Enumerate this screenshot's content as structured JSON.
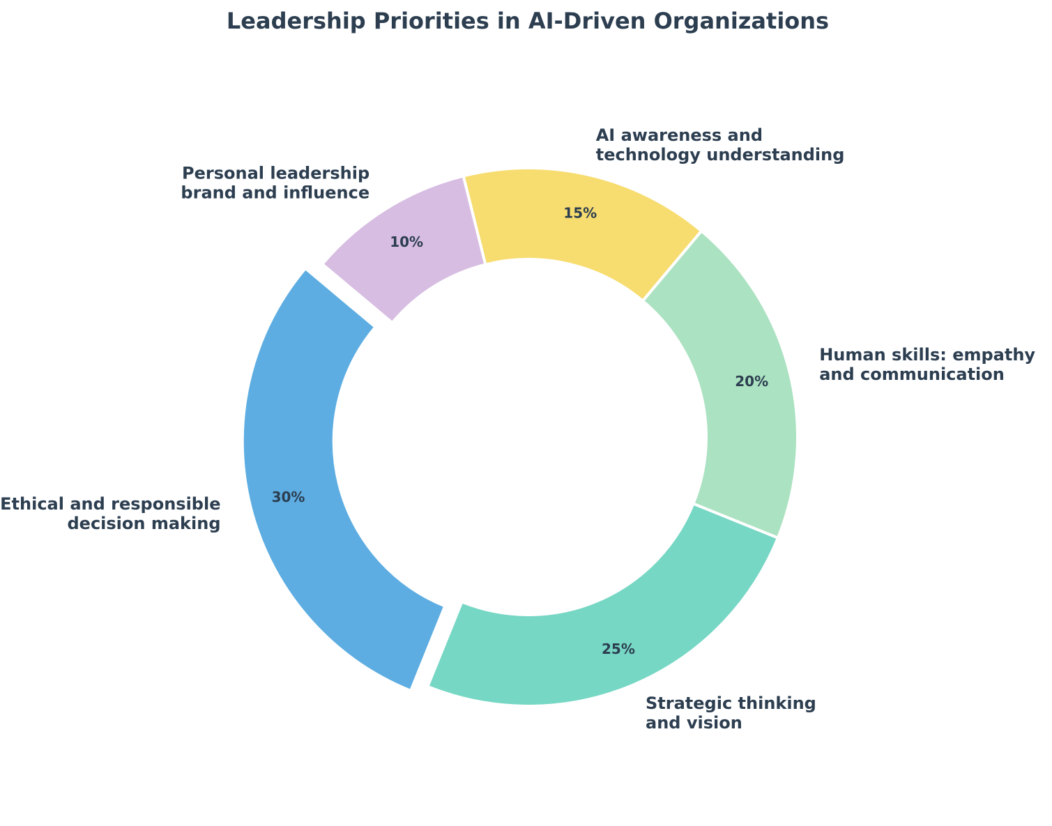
{
  "chart_data": {
    "type": "pie",
    "donut": true,
    "title": "Leadership Priorities in AI-Driven Organizations",
    "slices": [
      {
        "label": "Ethical and responsible decision making",
        "label_lines": [
          "Ethical and responsible",
          "decision making"
        ],
        "value": 30,
        "pct_text": "30%",
        "color": "#5DADE2",
        "exploded": true
      },
      {
        "label": "Strategic thinking and vision",
        "label_lines": [
          "Strategic thinking",
          "and vision"
        ],
        "value": 25,
        "pct_text": "25%",
        "color": "#76D7C4",
        "exploded": false
      },
      {
        "label": "Human skills: empathy and communication",
        "label_lines": [
          "Human skills: empathy",
          "and communication"
        ],
        "value": 20,
        "pct_text": "20%",
        "color": "#ABE2C1",
        "exploded": false
      },
      {
        "label": "AI awareness and technology understanding",
        "label_lines": [
          "AI awareness and",
          "technology understanding"
        ],
        "value": 15,
        "pct_text": "15%",
        "color": "#F7DC6F",
        "exploded": false
      },
      {
        "label": "Personal leadership brand and influence",
        "label_lines": [
          "Personal leadership",
          "brand and influence"
        ],
        "value": 10,
        "pct_text": "10%",
        "color": "#D7BDE2",
        "exploded": false
      }
    ],
    "start_angle_deg": 140,
    "direction": "counterclockwise"
  }
}
